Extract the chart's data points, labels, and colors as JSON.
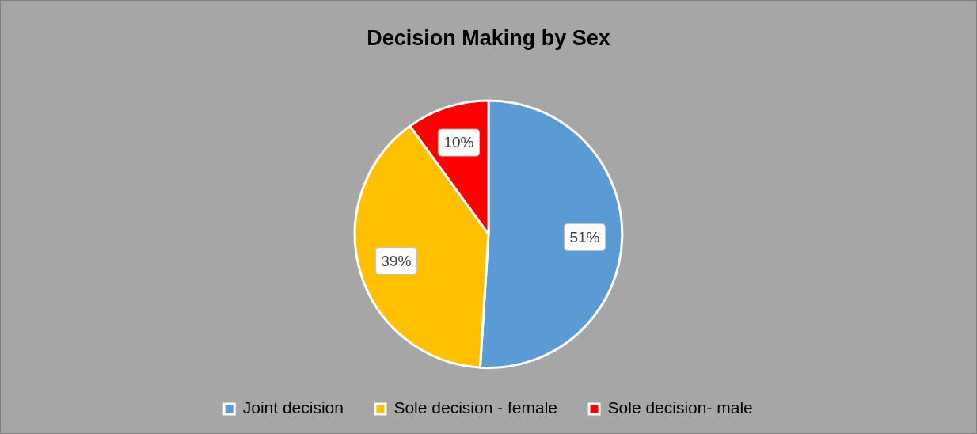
{
  "chart_data": {
    "type": "pie",
    "title": "Decision Making by Sex",
    "categories": [
      "Joint decision",
      "Sole decision - female",
      "Sole decision- male"
    ],
    "values": [
      51,
      39,
      10
    ],
    "colors": [
      "#5b9bd5",
      "#ffc000",
      "#ff0000"
    ],
    "value_labels": [
      "51%",
      "39%",
      "10%"
    ],
    "legend": "bottom"
  }
}
